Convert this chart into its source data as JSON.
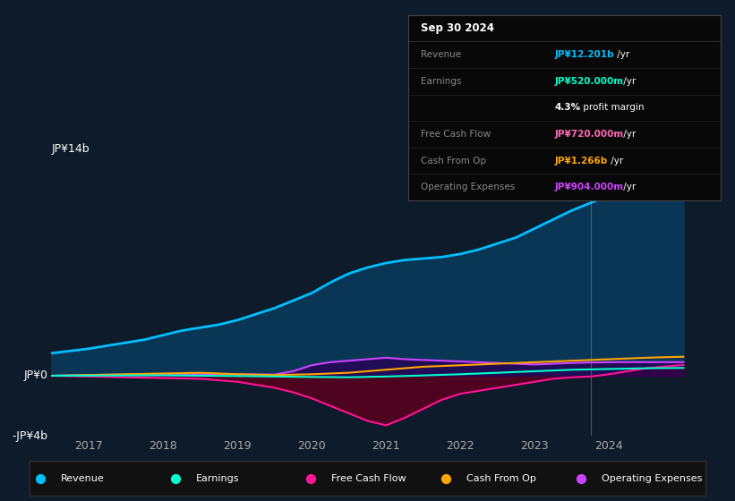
{
  "bg_color": "#0d1b2a",
  "chart_bg": "#0d1b2a",
  "grid_color": "#1e3a4a",
  "info_date": "Sep 30 2024",
  "ylabel_top": "JP¥14b",
  "ylabel_zero": "JP¥0",
  "ylabel_bottom": "-JP¥4b",
  "ylim": [
    -4000000000,
    14000000000
  ],
  "xlim_start": 2016.5,
  "xlim_end": 2025.2,
  "xtick_labels": [
    "2017",
    "2018",
    "2019",
    "2020",
    "2021",
    "2022",
    "2023",
    "2024"
  ],
  "xtick_positions": [
    2017,
    2018,
    2019,
    2020,
    2021,
    2022,
    2023,
    2024
  ],
  "vline_x": 2023.75,
  "revenue_color": "#00bfff",
  "revenue_fill": "#0a3a5a",
  "earnings_color": "#00ffcc",
  "free_cashflow_color": "#ff1493",
  "free_cashflow_fill": "#5a0020",
  "cash_from_op_color": "#ffa500",
  "operating_expenses_color": "#cc44ff",
  "operating_expenses_fill": "#2a0055",
  "legend_entries": [
    {
      "label": "Revenue",
      "color": "#00bfff"
    },
    {
      "label": "Earnings",
      "color": "#00ffcc"
    },
    {
      "label": "Free Cash Flow",
      "color": "#ff1493"
    },
    {
      "label": "Cash From Op",
      "color": "#ffa500"
    },
    {
      "label": "Operating Expenses",
      "color": "#cc44ff"
    }
  ],
  "info_rows": [
    {
      "label": "Revenue",
      "value": "JP¥12.201b",
      "suffix": " /yr",
      "value_color": "#00bfff"
    },
    {
      "label": "Earnings",
      "value": "JP¥520.000m",
      "suffix": " /yr",
      "value_color": "#00ffcc"
    },
    {
      "label": "",
      "bold": "4.3%",
      "rest": " profit margin",
      "value_color": "#ffffff"
    },
    {
      "label": "Free Cash Flow",
      "value": "JP¥720.000m",
      "suffix": " /yr",
      "value_color": "#ff69b4"
    },
    {
      "label": "Cash From Op",
      "value": "JP¥1.266b",
      "suffix": " /yr",
      "value_color": "#ffa500"
    },
    {
      "label": "Operating Expenses",
      "value": "JP¥904.000m",
      "suffix": " /yr",
      "value_color": "#cc44ff"
    }
  ],
  "revenue_x": [
    2016.5,
    2017,
    2017.25,
    2017.5,
    2017.75,
    2018,
    2018.25,
    2018.5,
    2018.75,
    2019,
    2019.25,
    2019.5,
    2019.75,
    2020,
    2020.25,
    2020.5,
    2020.75,
    2021,
    2021.25,
    2021.5,
    2021.75,
    2022,
    2022.25,
    2022.5,
    2022.75,
    2023,
    2023.25,
    2023.5,
    2023.75,
    2024,
    2024.25,
    2024.5,
    2024.75,
    2025.0
  ],
  "revenue_y": [
    1500000000,
    1800000000,
    2000000000,
    2200000000,
    2400000000,
    2700000000,
    3000000000,
    3200000000,
    3400000000,
    3700000000,
    4100000000,
    4500000000,
    5000000000,
    5500000000,
    6200000000,
    6800000000,
    7200000000,
    7500000000,
    7700000000,
    7800000000,
    7900000000,
    8100000000,
    8400000000,
    8800000000,
    9200000000,
    9800000000,
    10400000000,
    11000000000,
    11500000000,
    12000000000,
    12200000000,
    12100000000,
    12150000000,
    12200000000
  ],
  "earnings_x": [
    2016.5,
    2017,
    2017.5,
    2018,
    2018.5,
    2019,
    2019.5,
    2020,
    2020.5,
    2021,
    2021.5,
    2022,
    2022.5,
    2023,
    2023.5,
    2024,
    2024.5,
    2025.0
  ],
  "earnings_y": [
    0,
    10000000,
    20000000,
    30000000,
    0,
    -20000000,
    -50000000,
    -80000000,
    -100000000,
    -50000000,
    20000000,
    100000000,
    200000000,
    300000000,
    400000000,
    450000000,
    500000000,
    520000000
  ],
  "fcf_x": [
    2016.5,
    2017,
    2017.5,
    2018,
    2018.5,
    2019,
    2019.25,
    2019.5,
    2019.75,
    2020,
    2020.25,
    2020.5,
    2020.75,
    2021,
    2021.25,
    2021.5,
    2021.75,
    2022,
    2022.25,
    2022.5,
    2022.75,
    2023,
    2023.25,
    2023.5,
    2023.75,
    2024,
    2024.25,
    2024.5,
    2025.0
  ],
  "fcf_y": [
    0,
    -50000000,
    -100000000,
    -150000000,
    -200000000,
    -400000000,
    -600000000,
    -800000000,
    -1100000000,
    -1500000000,
    -2000000000,
    -2500000000,
    -3000000000,
    -3300000000,
    -2800000000,
    -2200000000,
    -1600000000,
    -1200000000,
    -1000000000,
    -800000000,
    -600000000,
    -400000000,
    -200000000,
    -100000000,
    -50000000,
    100000000,
    300000000,
    500000000,
    720000000
  ],
  "cop_x": [
    2016.5,
    2017,
    2017.5,
    2018,
    2018.5,
    2019,
    2019.5,
    2020,
    2020.5,
    2021,
    2021.5,
    2022,
    2022.5,
    2023,
    2023.5,
    2024,
    2024.5,
    2025.0
  ],
  "cop_y": [
    0,
    50000000,
    100000000,
    150000000,
    200000000,
    100000000,
    50000000,
    100000000,
    200000000,
    400000000,
    600000000,
    700000000,
    800000000,
    900000000,
    1000000000,
    1100000000,
    1200000000,
    1266000000
  ],
  "opex_x": [
    2016.5,
    2017,
    2017.5,
    2018,
    2018.5,
    2019,
    2019.5,
    2019.75,
    2020,
    2020.25,
    2020.5,
    2020.75,
    2021,
    2021.25,
    2021.5,
    2021.75,
    2022,
    2022.25,
    2022.5,
    2022.75,
    2023,
    2023.25,
    2023.5,
    2023.75,
    2024,
    2024.25,
    2024.5,
    2025.0
  ],
  "opex_y": [
    0,
    50000000,
    80000000,
    100000000,
    120000000,
    100000000,
    80000000,
    300000000,
    700000000,
    900000000,
    1000000000,
    1100000000,
    1200000000,
    1100000000,
    1050000000,
    1000000000,
    950000000,
    900000000,
    850000000,
    800000000,
    750000000,
    800000000,
    850000000,
    880000000,
    900000000,
    910000000,
    905000000,
    904000000
  ]
}
